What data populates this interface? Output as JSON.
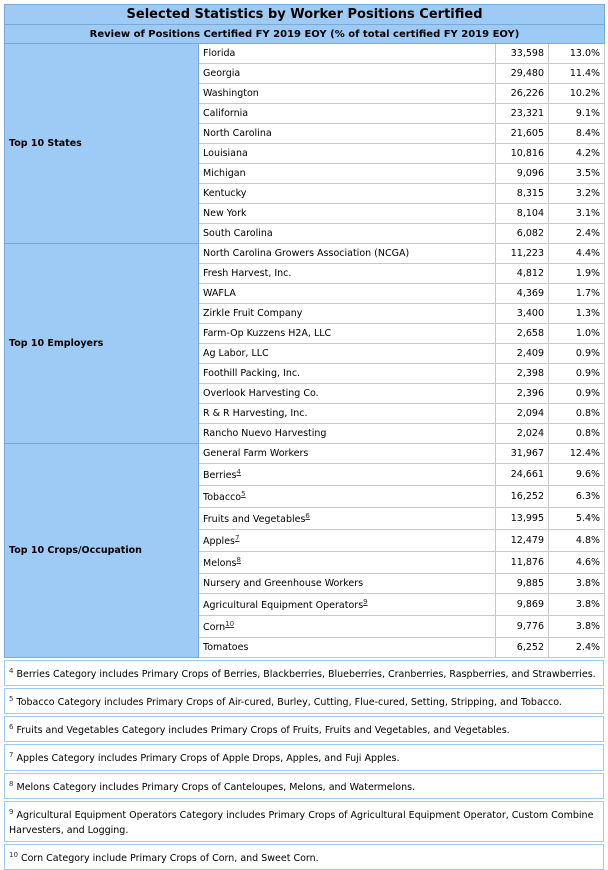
{
  "header": {
    "title": "Selected Statistics by Worker Positions Certified",
    "subtitle": "Review of Positions Certified FY 2019 EOY (% of total certified FY 2019 EOY)"
  },
  "sections": [
    {
      "label": "Top 10 States",
      "rows": [
        {
          "name": "Florida",
          "count": "33,598",
          "percent": "13.0%"
        },
        {
          "name": "Georgia",
          "count": "29,480",
          "percent": "11.4%"
        },
        {
          "name": "Washington",
          "count": "26,226",
          "percent": "10.2%"
        },
        {
          "name": "California",
          "count": "23,321",
          "percent": "9.1%"
        },
        {
          "name": "North Carolina",
          "count": "21,605",
          "percent": "8.4%"
        },
        {
          "name": "Louisiana",
          "count": "10,816",
          "percent": "4.2%"
        },
        {
          "name": "Michigan",
          "count": "9,096",
          "percent": "3.5%"
        },
        {
          "name": "Kentucky",
          "count": "8,315",
          "percent": "3.2%"
        },
        {
          "name": "New York",
          "count": "8,104",
          "percent": "3.1%"
        },
        {
          "name": "South Carolina",
          "count": "6,082",
          "percent": "2.4%"
        }
      ]
    },
    {
      "label": "Top 10 Employers",
      "rows": [
        {
          "name": "North Carolina Growers Association (NCGA)",
          "count": "11,223",
          "percent": "4.4%"
        },
        {
          "name": "Fresh Harvest, Inc.",
          "count": "4,812",
          "percent": "1.9%"
        },
        {
          "name": "WAFLA",
          "count": "4,369",
          "percent": "1.7%"
        },
        {
          "name": "Zirkle Fruit Company",
          "count": "3,400",
          "percent": "1.3%"
        },
        {
          "name": "Farm-Op Kuzzens H2A, LLC",
          "count": "2,658",
          "percent": "1.0%"
        },
        {
          "name": "Ag Labor, LLC",
          "count": "2,409",
          "percent": "0.9%"
        },
        {
          "name": "Foothill Packing, Inc.",
          "count": "2,398",
          "percent": "0.9%"
        },
        {
          "name": "Overlook Harvesting Co.",
          "count": "2,396",
          "percent": "0.9%"
        },
        {
          "name": "R & R Harvesting, Inc.",
          "count": "2,094",
          "percent": "0.8%"
        },
        {
          "name": "Rancho Nuevo Harvesting",
          "count": "2,024",
          "percent": "0.8%"
        }
      ]
    },
    {
      "label": "Top 10 Crops/Occupation",
      "rows": [
        {
          "name": "General Farm Workers",
          "count": "31,967",
          "percent": "12.4%"
        },
        {
          "name": "Berries",
          "note": "4",
          "count": "24,661",
          "percent": "9.6%"
        },
        {
          "name": "Tobacco",
          "note": "5",
          "count": "16,252",
          "percent": "6.3%"
        },
        {
          "name": "Fruits and Vegetables",
          "note": "6",
          "count": "13,995",
          "percent": "5.4%"
        },
        {
          "name": "Apples",
          "note": "7",
          "count": "12,479",
          "percent": "4.8%"
        },
        {
          "name": "Melons",
          "note": "8",
          "count": "11,876",
          "percent": "4.6%"
        },
        {
          "name": "Nursery and Greenhouse Workers",
          "count": "9,885",
          "percent": "3.8%"
        },
        {
          "name": "Agricultural Equipment Operators",
          "note": "9",
          "count": "9,869",
          "percent": "3.8%"
        },
        {
          "name": "Corn",
          "note": "10",
          "count": "9,776",
          "percent": "3.8%"
        },
        {
          "name": "Tomatoes",
          "count": "6,252",
          "percent": "2.4%"
        }
      ]
    }
  ],
  "footnotes": [
    {
      "mark": "4",
      "text": "Berries Category includes Primary Crops of Berries, Blackberries, Blueberries, Cranberries, Raspberries, and Strawberries."
    },
    {
      "mark": "5",
      "text": "Tobacco Category includes Primary Crops of Air-cured, Burley, Cutting, Flue-cured, Setting, Stripping, and Tobacco."
    },
    {
      "mark": "6",
      "text": "Fruits and Vegetables Category includes Primary Crops of Fruits, Fruits and Vegetables, and Vegetables."
    },
    {
      "mark": "7",
      "text": "Apples Category includes Primary Crops of Apple Drops, Apples, and Fuji Apples."
    },
    {
      "mark": "8",
      "text": "Melons Category includes Primary Crops of Canteloupes, Melons, and Watermelons."
    },
    {
      "mark": "9",
      "text": "Agricultural Equipment Operators Category includes Primary Crops of Agricultural Equipment Operator, Custom Combine Harvesters, and Logging."
    },
    {
      "mark": "10",
      "text": "Corn Category include Primary Crops of Corn, and Sweet Corn."
    }
  ]
}
